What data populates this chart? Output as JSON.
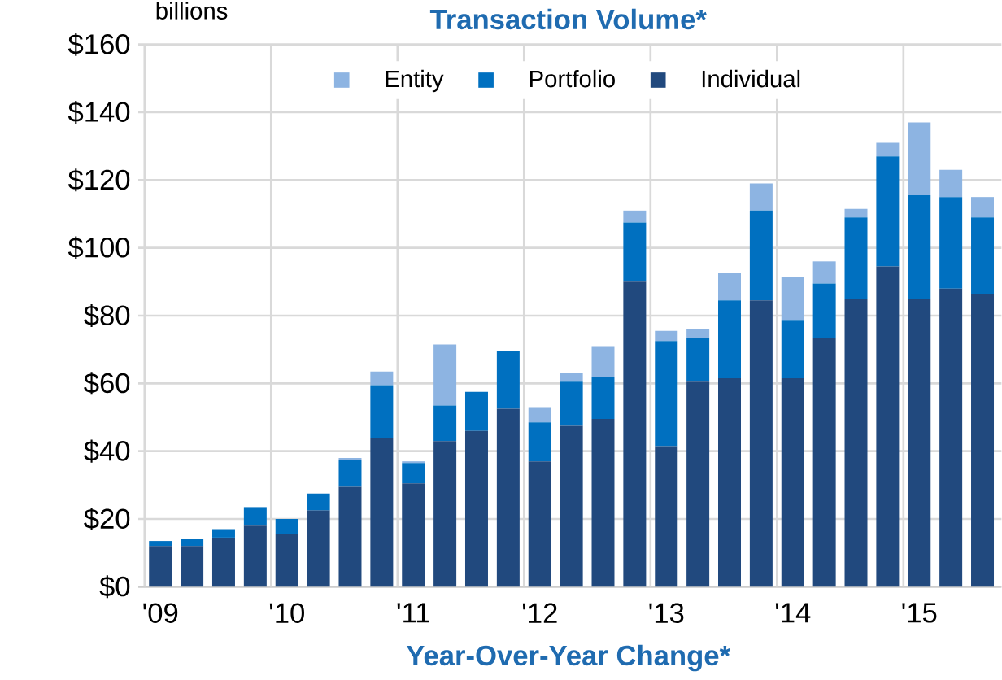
{
  "chart_data": {
    "type": "bar",
    "stacked": true,
    "title": "Transaction Volume*",
    "ylabel": "billions",
    "categories": [
      "'09",
      null,
      null,
      null,
      "'10",
      null,
      null,
      null,
      "'11",
      null,
      null,
      null,
      "'12",
      null,
      null,
      null,
      "'13",
      null,
      null,
      null,
      "'14",
      null,
      null,
      null,
      "'15",
      null,
      null
    ],
    "series": [
      {
        "name": "Individual",
        "color": "#21497e",
        "values": [
          12,
          12,
          14.5,
          18,
          15.5,
          22.5,
          29.5,
          44,
          30.5,
          43,
          46,
          52.5,
          37,
          47.5,
          49.5,
          90,
          41.5,
          60.5,
          61.5,
          84.5,
          61.5,
          73.5,
          85,
          94.5,
          85,
          88,
          86.5
        ]
      },
      {
        "name": "Portfolio",
        "color": "#0070c0",
        "values": [
          1.5,
          2,
          2.5,
          5.5,
          4.5,
          5,
          8,
          15.5,
          6,
          10.5,
          11.5,
          17,
          11.5,
          13,
          12.5,
          17.5,
          31,
          13,
          23,
          26.5,
          17,
          16,
          24,
          32.5,
          30.5,
          27,
          22.5
        ]
      },
      {
        "name": "Entity",
        "color": "#8db4e2",
        "values": [
          0,
          0,
          0,
          0,
          0,
          0,
          0.5,
          4,
          0.5,
          18,
          0,
          0,
          4.5,
          2.5,
          9,
          3.5,
          3,
          2.5,
          8,
          8,
          13,
          6.5,
          2.5,
          4,
          21.5,
          8,
          6
        ]
      }
    ],
    "ylim": [
      0,
      160
    ],
    "yticks": [
      {
        "value": 0,
        "label": "$0"
      },
      {
        "value": 20,
        "label": "$20"
      },
      {
        "value": 40,
        "label": "$40"
      },
      {
        "value": 60,
        "label": "$60"
      },
      {
        "value": 80,
        "label": "$80"
      },
      {
        "value": 100,
        "label": "$100"
      },
      {
        "value": 120,
        "label": "$120"
      },
      {
        "value": 140,
        "label": "$140"
      },
      {
        "value": 160,
        "label": "$160"
      }
    ],
    "grid": true,
    "legend": "top",
    "annotations": [
      "Year-Over-Year Change*"
    ]
  }
}
